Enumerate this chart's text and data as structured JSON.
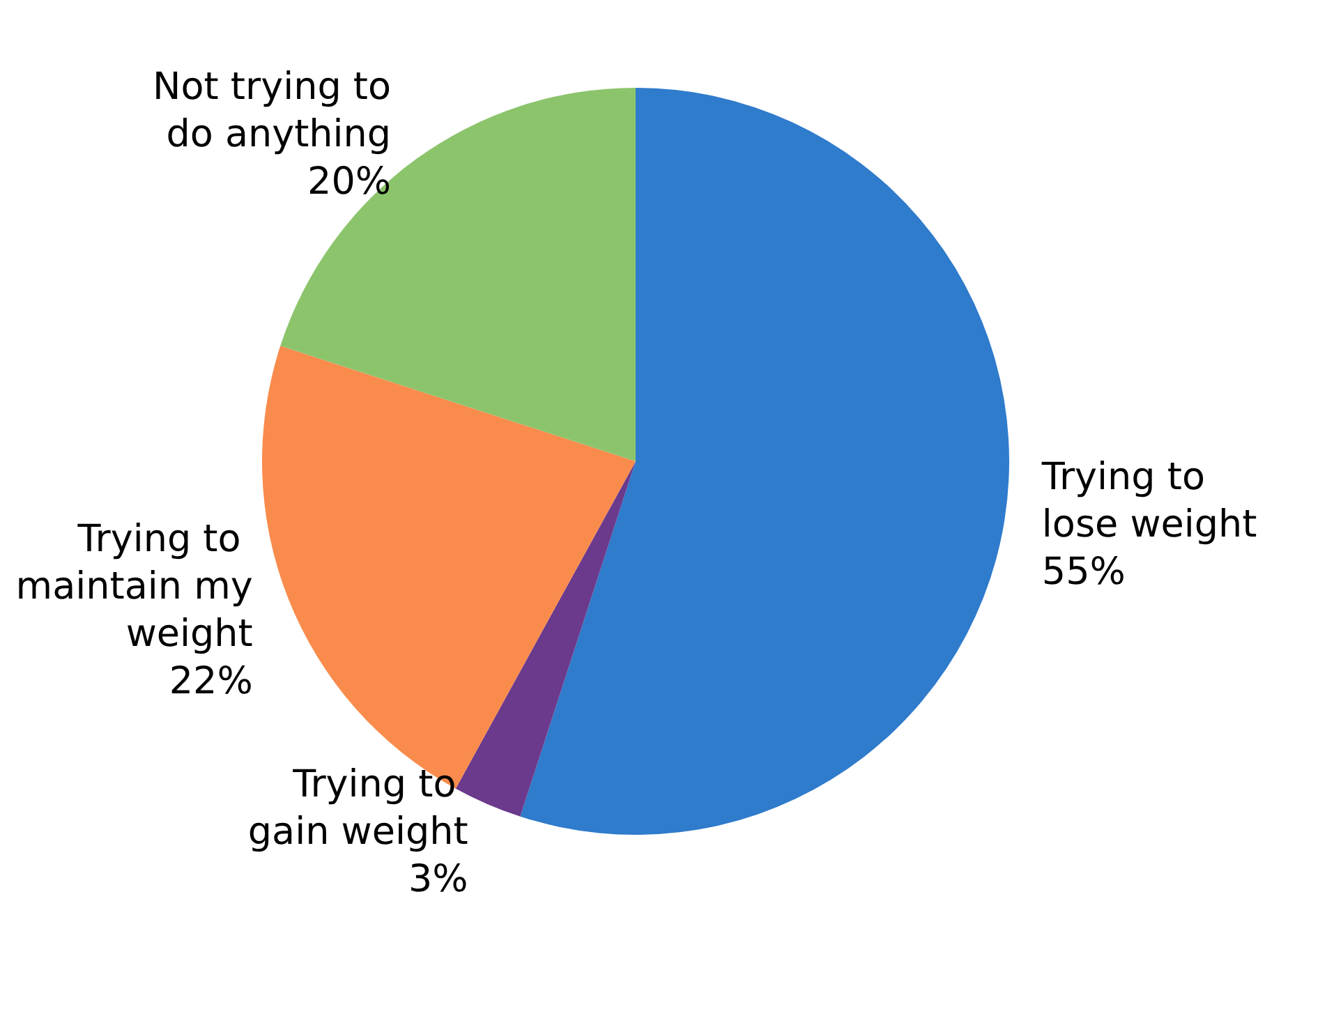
{
  "chart_data": {
    "type": "pie",
    "categories": [
      "Trying to lose weight",
      "Trying to gain weight",
      "Trying to maintain my weight",
      "Not trying to do anything"
    ],
    "values": [
      55,
      3,
      22,
      20
    ],
    "colors": [
      "#2f7bcc",
      "#6b3a8c",
      "#f98b4c",
      "#8cc46c"
    ],
    "value_labels": [
      "55%",
      "3%",
      "22%",
      "20%"
    ],
    "legend": false
  }
}
